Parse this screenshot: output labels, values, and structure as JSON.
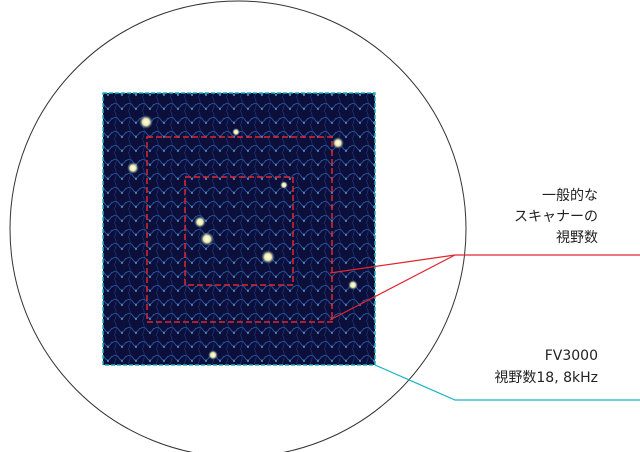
{
  "general_scanner": {
    "lines": [
      "一般的な",
      "スキャナーの",
      "視野数"
    ]
  },
  "fv3000": {
    "lines": [
      "FV3000",
      "視野数18, 8kHz"
    ]
  }
}
